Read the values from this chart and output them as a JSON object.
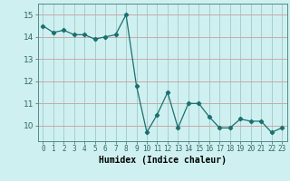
{
  "x": [
    0,
    1,
    2,
    3,
    4,
    5,
    6,
    7,
    8,
    9,
    10,
    11,
    12,
    13,
    14,
    15,
    16,
    17,
    18,
    19,
    20,
    21,
    22,
    23
  ],
  "y": [
    14.5,
    14.2,
    14.3,
    14.1,
    14.1,
    13.9,
    14.0,
    14.1,
    15.0,
    11.8,
    9.7,
    10.5,
    11.5,
    9.9,
    11.0,
    11.0,
    10.4,
    9.9,
    9.9,
    10.3,
    10.2,
    10.2,
    9.7,
    9.9
  ],
  "xlabel": "Humidex (Indice chaleur)",
  "xlim": [
    -0.5,
    23.5
  ],
  "ylim": [
    9.3,
    15.5
  ],
  "yticks": [
    10,
    11,
    12,
    13,
    14,
    15
  ],
  "xticks": [
    0,
    1,
    2,
    3,
    4,
    5,
    6,
    7,
    8,
    9,
    10,
    11,
    12,
    13,
    14,
    15,
    16,
    17,
    18,
    19,
    20,
    21,
    22,
    23
  ],
  "bg_color": "#cff0f0",
  "line_color": "#1a7070",
  "hgrid_color": "#c8a8a8",
  "vgrid_color": "#a8cccc"
}
